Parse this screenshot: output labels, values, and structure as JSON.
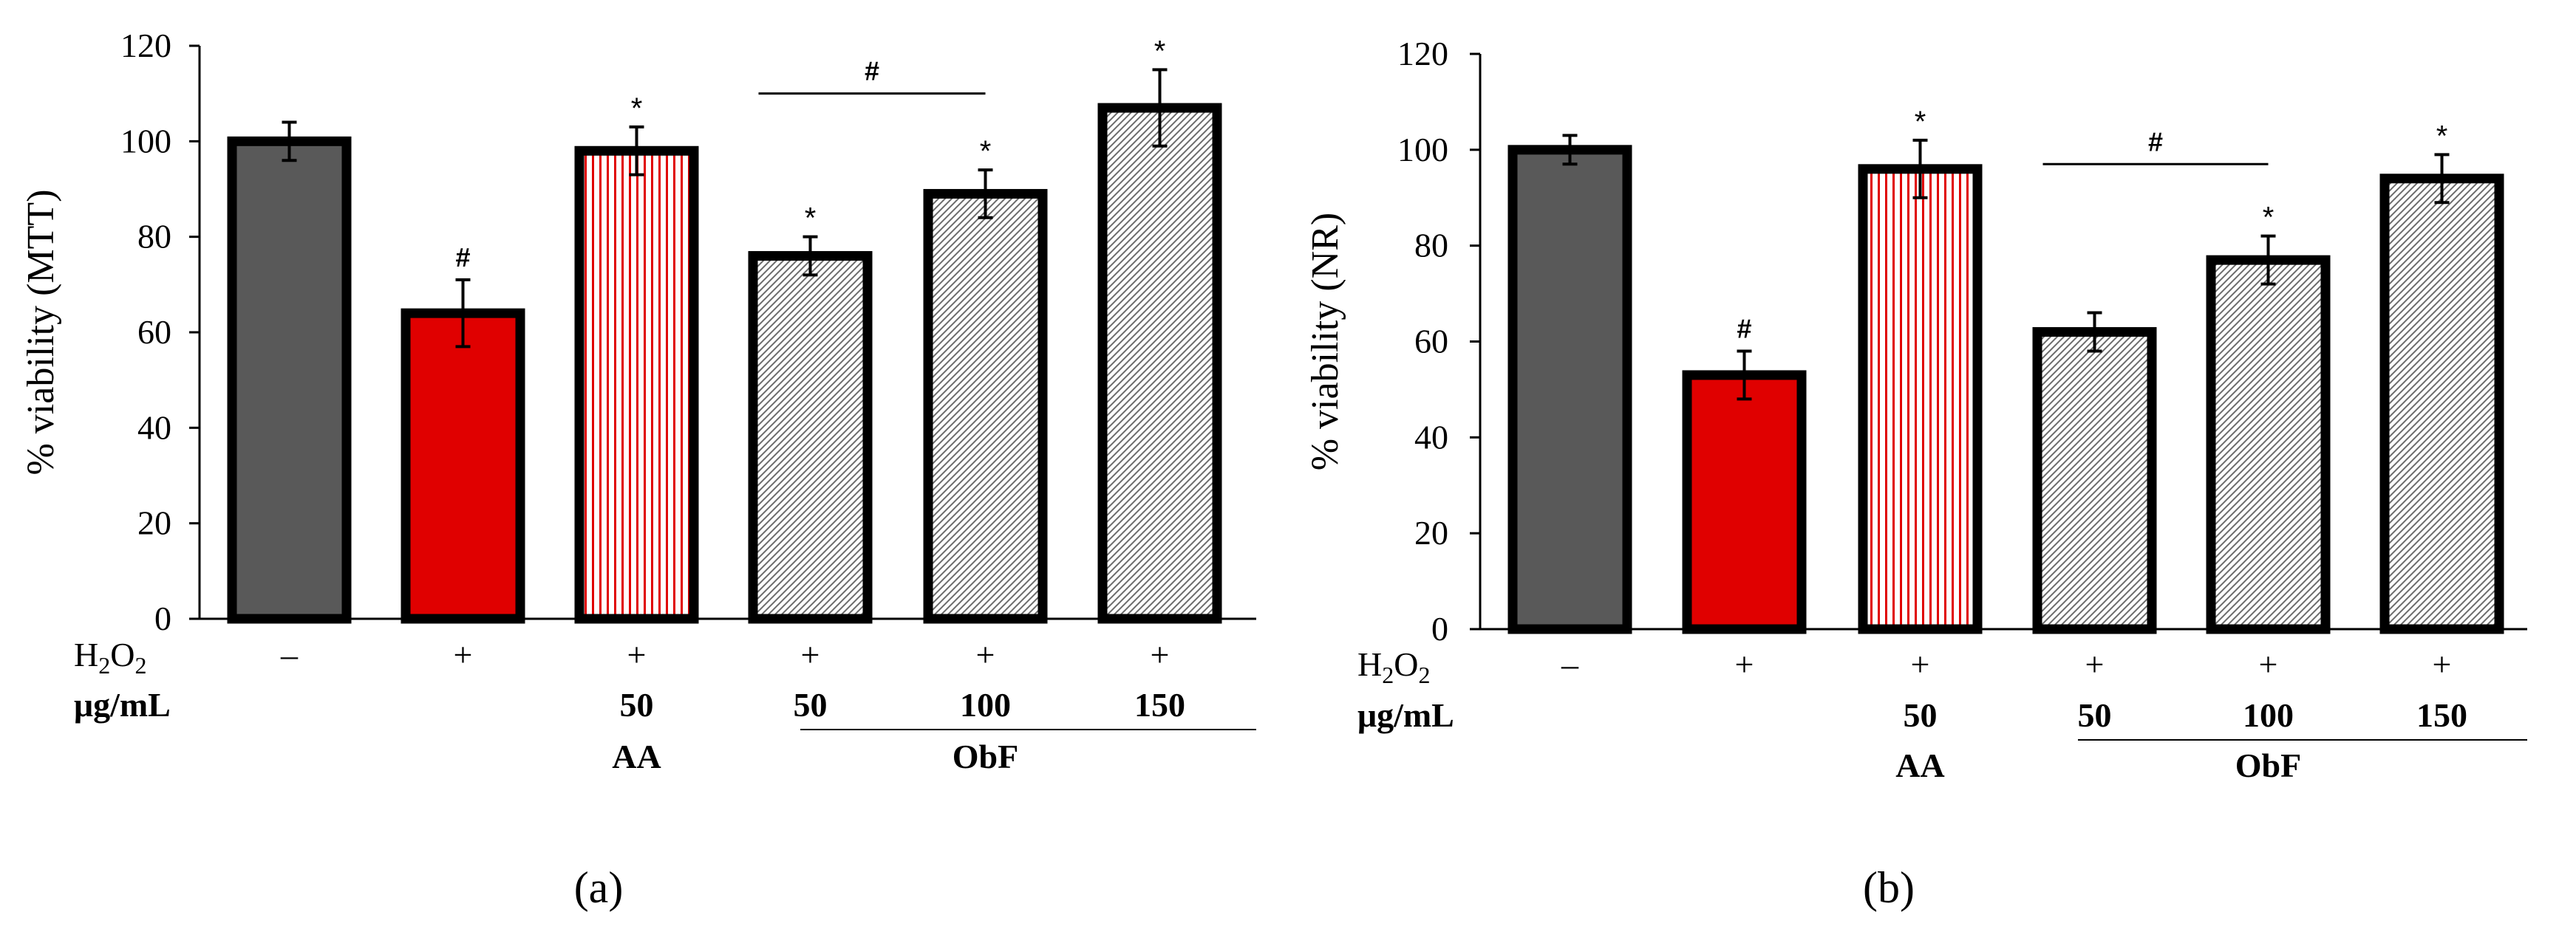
{
  "chart_data": [
    {
      "type": "bar",
      "caption": "(a)",
      "ylabel": "% viability  (MTT)",
      "ylim": [
        0,
        120
      ],
      "yticks": [
        0,
        20,
        40,
        60,
        80,
        100,
        120
      ],
      "conditions": {
        "h2o2_label": "H",
        "h2o2_sub1": "2",
        "h2o2_o": "O",
        "h2o2_sub2": "2",
        "dose_label": "μg/mL",
        "h2o2": [
          "–",
          "+",
          "+",
          "+",
          "+",
          "+"
        ],
        "dose": [
          "",
          "",
          "50",
          "50",
          "100",
          "150"
        ],
        "groups": [
          {
            "label": "AA"
          },
          {
            "label": "ObF"
          }
        ]
      },
      "bars": [
        {
          "value": 100,
          "error": 4,
          "fill": "#595959",
          "pattern": "solid",
          "mark": ""
        },
        {
          "value": 64,
          "error": 7,
          "fill": "#e00000",
          "pattern": "solid",
          "mark": "#"
        },
        {
          "value": 98,
          "error": 5,
          "fill": "#ffffff",
          "pattern": "red-vertical",
          "mark": "*"
        },
        {
          "value": 76,
          "error": 4,
          "fill": "#ffffff",
          "pattern": "gray-diagonal",
          "mark": "*"
        },
        {
          "value": 89,
          "error": 5,
          "fill": "#ffffff",
          "pattern": "gray-diagonal",
          "mark": "*"
        },
        {
          "value": 107,
          "error": 8,
          "fill": "#ffffff",
          "pattern": "gray-diagonal",
          "mark": "*"
        }
      ],
      "bracket": {
        "from": 3,
        "to": 4,
        "y": 110,
        "mark": "#"
      }
    },
    {
      "type": "bar",
      "caption": "(b)",
      "ylabel": "% viability  (NR)",
      "ylim": [
        0,
        120
      ],
      "yticks": [
        0,
        20,
        40,
        60,
        80,
        100,
        120
      ],
      "conditions": {
        "h2o2_label": "H",
        "h2o2_sub1": "2",
        "h2o2_o": "O",
        "h2o2_sub2": "2",
        "dose_label": "μg/mL",
        "h2o2": [
          "–",
          "+",
          "+",
          "+",
          "+",
          "+"
        ],
        "dose": [
          "",
          "",
          "50",
          "50",
          "100",
          "150"
        ],
        "groups": [
          {
            "label": "AA"
          },
          {
            "label": "ObF"
          }
        ]
      },
      "bars": [
        {
          "value": 100,
          "error": 3,
          "fill": "#595959",
          "pattern": "solid",
          "mark": ""
        },
        {
          "value": 53,
          "error": 5,
          "fill": "#e00000",
          "pattern": "solid",
          "mark": "#"
        },
        {
          "value": 96,
          "error": 6,
          "fill": "#ffffff",
          "pattern": "red-vertical",
          "mark": "*"
        },
        {
          "value": 62,
          "error": 4,
          "fill": "#ffffff",
          "pattern": "gray-diagonal",
          "mark": ""
        },
        {
          "value": 77,
          "error": 5,
          "fill": "#ffffff",
          "pattern": "gray-diagonal",
          "mark": "*"
        },
        {
          "value": 94,
          "error": 5,
          "fill": "#ffffff",
          "pattern": "gray-diagonal",
          "mark": "*"
        }
      ],
      "bracket": {
        "from": 3,
        "to": 4,
        "y": 97,
        "mark": "#"
      }
    }
  ]
}
